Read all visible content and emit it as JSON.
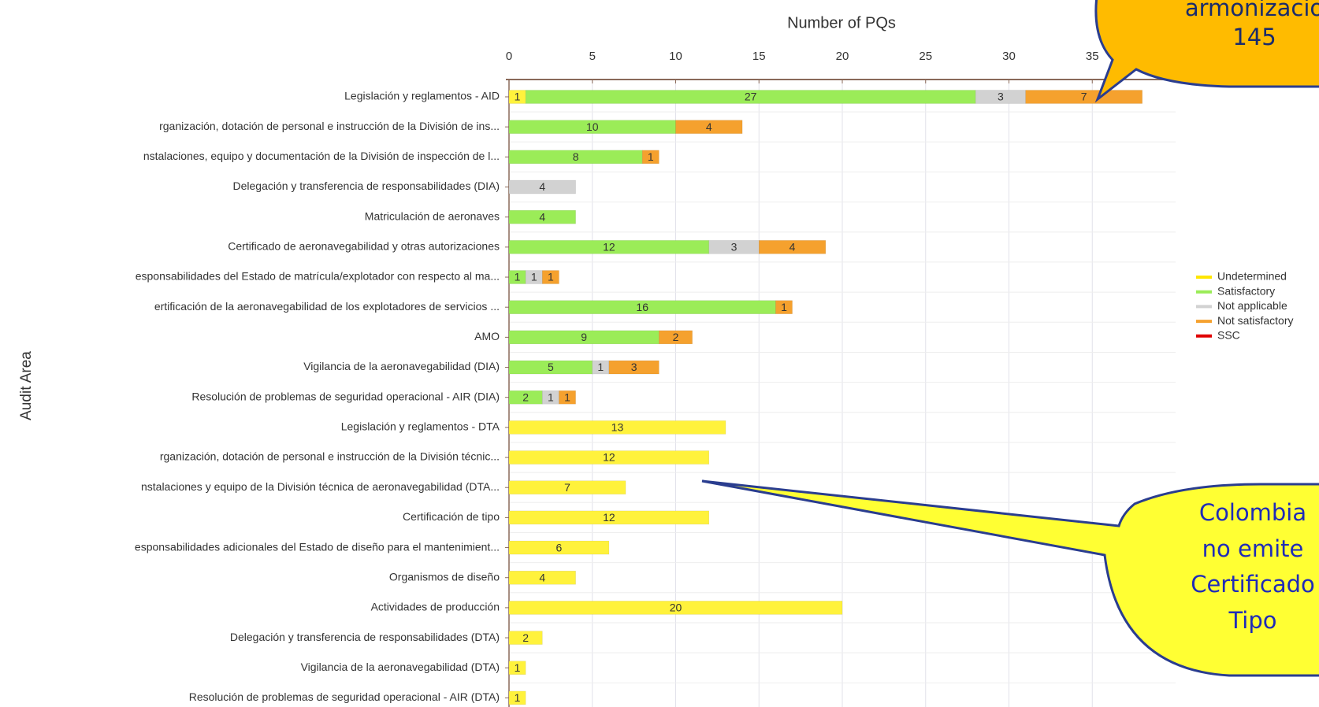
{
  "chart_data": {
    "type": "stacked-barh",
    "x_label": "Number of PQs",
    "y_label": "Audit Area",
    "categories": [
      "Legislación y reglamentos - AID",
      "rganización, dotación de personal e instrucción de la División de ins...",
      "nstalaciones, equipo y documentación de la División de inspección de l...",
      "Delegación y transferencia de responsabilidades (DIA)",
      "Matriculación de aeronaves",
      "Certificado de aeronavegabilidad y otras autorizaciones",
      "esponsabilidades del Estado de matrícula/explotador con respecto al ma...",
      "ertificación de la aeronavegabilidad de los explotadores de servicios ...",
      "AMO",
      "Vigilancia de la aeronavegabilidad (DIA)",
      "Resolución de problemas de seguridad operacional - AIR (DIA)",
      "Legislación y reglamentos - DTA",
      "rganización, dotación de personal e instrucción de la División técnic...",
      "nstalaciones y equipo de la División técnica de aeronavegabilidad (DTA...",
      "Certificación de tipo",
      "esponsabilidades adicionales del Estado de diseño para el mantenimient...",
      "Organismos de diseño",
      "Actividades de producción",
      "Delegación y transferencia de responsabilidades (DTA)",
      "Vigilancia de la aeronavegabilidad (DTA)",
      "Resolución de problemas de seguridad operacional - AIR (DTA)"
    ],
    "series": [
      {
        "name": "Undetermined",
        "color": "#fff23c",
        "values": [
          1,
          null,
          null,
          null,
          null,
          null,
          null,
          null,
          null,
          null,
          null,
          13,
          12,
          7,
          12,
          6,
          4,
          20,
          2,
          1,
          1
        ]
      },
      {
        "name": "Satisfactory",
        "color": "#9bec58",
        "values": [
          27,
          10,
          8,
          null,
          4,
          12,
          1,
          16,
          9,
          5,
          2,
          null,
          null,
          null,
          null,
          null,
          null,
          null,
          null,
          null,
          null
        ]
      },
      {
        "name": "Not applicable",
        "color": "#d2d2d2",
        "values": [
          3,
          null,
          null,
          4,
          null,
          3,
          1,
          null,
          null,
          1,
          1,
          null,
          null,
          null,
          null,
          null,
          null,
          null,
          null,
          null,
          null
        ]
      },
      {
        "name": "Not satisfactory",
        "color": "#f5a12e",
        "values": [
          7,
          4,
          1,
          null,
          null,
          4,
          1,
          1,
          2,
          3,
          1,
          null,
          null,
          null,
          null,
          null,
          null,
          null,
          null,
          null,
          null
        ]
      },
      {
        "name": "SSC",
        "color": "#e00000",
        "values": [
          null,
          null,
          null,
          null,
          null,
          null,
          null,
          null,
          null,
          null,
          null,
          null,
          null,
          null,
          null,
          null,
          null,
          null,
          null,
          null,
          null
        ]
      }
    ],
    "xlim": [
      0,
      40
    ],
    "xticks": [
      0,
      5,
      10,
      15,
      20,
      25,
      30,
      35
    ],
    "grid": true,
    "legend": "right"
  },
  "annotations": [
    {
      "lines": [
        "armonizacio",
        "145"
      ]
    },
    {
      "lines": [
        "Colombia",
        "no emite",
        "Certificado",
        "Tipo"
      ]
    }
  ]
}
